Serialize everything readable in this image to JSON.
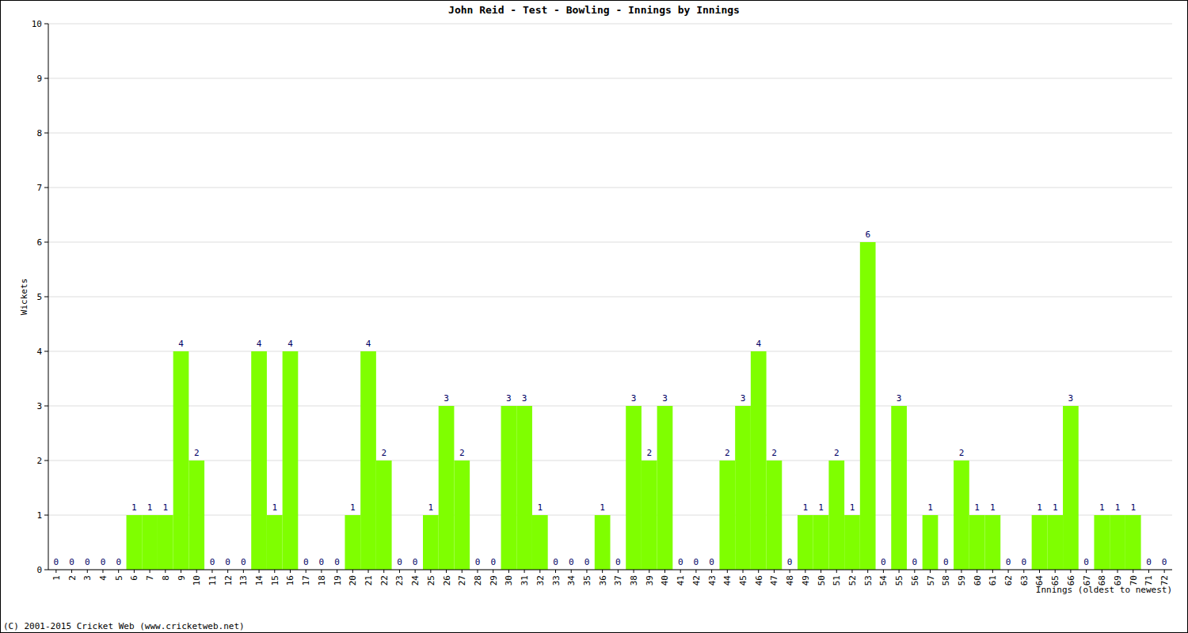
{
  "chart_data": {
    "type": "bar",
    "title": "John Reid - Test - Bowling - Innings by Innings",
    "x_label": "Innings (oldest to newest)",
    "y_label": "Wickets",
    "annotations": [
      "(C) 2001-2015 Cricket Web (www.cricketweb.net)"
    ],
    "categories": [
      "1",
      "2",
      "3",
      "4",
      "5",
      "6",
      "7",
      "8",
      "9",
      "10",
      "11",
      "12",
      "13",
      "14",
      "15",
      "16",
      "17",
      "18",
      "19",
      "20",
      "21",
      "22",
      "23",
      "24",
      "25",
      "26",
      "27",
      "28",
      "29",
      "30",
      "31",
      "32",
      "33",
      "34",
      "35",
      "36",
      "37",
      "38",
      "39",
      "40",
      "41",
      "42",
      "43",
      "44",
      "45",
      "46",
      "47",
      "48",
      "49",
      "50",
      "51",
      "52",
      "53",
      "54",
      "55",
      "56",
      "57",
      "58",
      "59",
      "60",
      "61",
      "62",
      "63",
      "64",
      "65",
      "66",
      "67",
      "68",
      "69",
      "70",
      "71",
      "72"
    ],
    "values": [
      0,
      0,
      0,
      0,
      0,
      1,
      1,
      1,
      4,
      2,
      0,
      0,
      0,
      4,
      1,
      4,
      0,
      0,
      0,
      1,
      4,
      2,
      0,
      0,
      1,
      3,
      2,
      0,
      0,
      3,
      3,
      1,
      0,
      0,
      0,
      1,
      0,
      3,
      2,
      3,
      0,
      0,
      0,
      2,
      3,
      4,
      2,
      0,
      1,
      1,
      2,
      1,
      6,
      0,
      3,
      0,
      1,
      0,
      2,
      1,
      1,
      0,
      0,
      1,
      1,
      3,
      0,
      1,
      1,
      1,
      0,
      0
    ],
    "color": "#7fff00",
    "ylim": [
      0,
      10
    ],
    "yticks": [
      0,
      1,
      2,
      3,
      4,
      5,
      6,
      7,
      8,
      9,
      10
    ],
    "grid": true,
    "data_labels": true
  }
}
